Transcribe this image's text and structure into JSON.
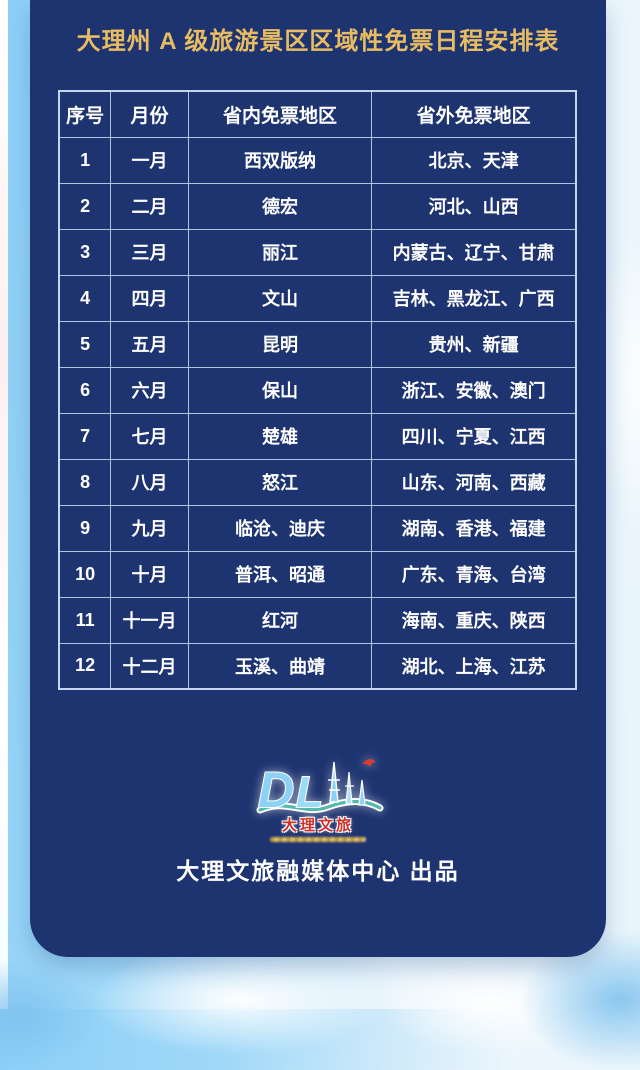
{
  "poster": {
    "title": "大理州 A 级旅游景区区域性免票日程安排表",
    "credit": "大理文旅融媒体中心 出品"
  },
  "table": {
    "headers": [
      "序号",
      "月份",
      "省内免票地区",
      "省外免票地区"
    ],
    "rows": [
      {
        "no": "1",
        "month": "一月",
        "in_province": "西双版纳",
        "out_province": "北京、天津"
      },
      {
        "no": "2",
        "month": "二月",
        "in_province": "德宏",
        "out_province": "河北、山西"
      },
      {
        "no": "3",
        "month": "三月",
        "in_province": "丽江",
        "out_province": "内蒙古、辽宁、甘肃"
      },
      {
        "no": "4",
        "month": "四月",
        "in_province": "文山",
        "out_province": "吉林、黑龙江、广西"
      },
      {
        "no": "5",
        "month": "五月",
        "in_province": "昆明",
        "out_province": "贵州、新疆"
      },
      {
        "no": "6",
        "month": "六月",
        "in_province": "保山",
        "out_province": "浙江、安徽、澳门"
      },
      {
        "no": "7",
        "month": "七月",
        "in_province": "楚雄",
        "out_province": "四川、宁夏、江西"
      },
      {
        "no": "8",
        "month": "八月",
        "in_province": "怒江",
        "out_province": "山东、河南、西藏"
      },
      {
        "no": "9",
        "month": "九月",
        "in_province": "临沧、迪庆",
        "out_province": "湖南、香港、福建"
      },
      {
        "no": "10",
        "month": "十月",
        "in_province": "普洱、昭通",
        "out_province": "广东、青海、台湾"
      },
      {
        "no": "11",
        "month": "十一月",
        "in_province": "红河",
        "out_province": "海南、重庆、陕西"
      },
      {
        "no": "12",
        "month": "十二月",
        "in_province": "玉溪、曲靖",
        "out_province": "湖北、上海、江苏"
      }
    ]
  },
  "logo": {
    "mark": "dali-three-pagodas-logo",
    "text_cn": "大理文旅"
  },
  "colors": {
    "panel_navy": "#1e3470",
    "title_gold": "#e7bc62",
    "table_border": "#c6d8ee",
    "cell_text": "#ffffff",
    "sky_blue": "#8ccff7",
    "sky_light": "#e9f5fb",
    "logo_blue": "#8cd2f4",
    "logo_red": "#cf2f27",
    "logo_teal": "#57b9ae"
  }
}
